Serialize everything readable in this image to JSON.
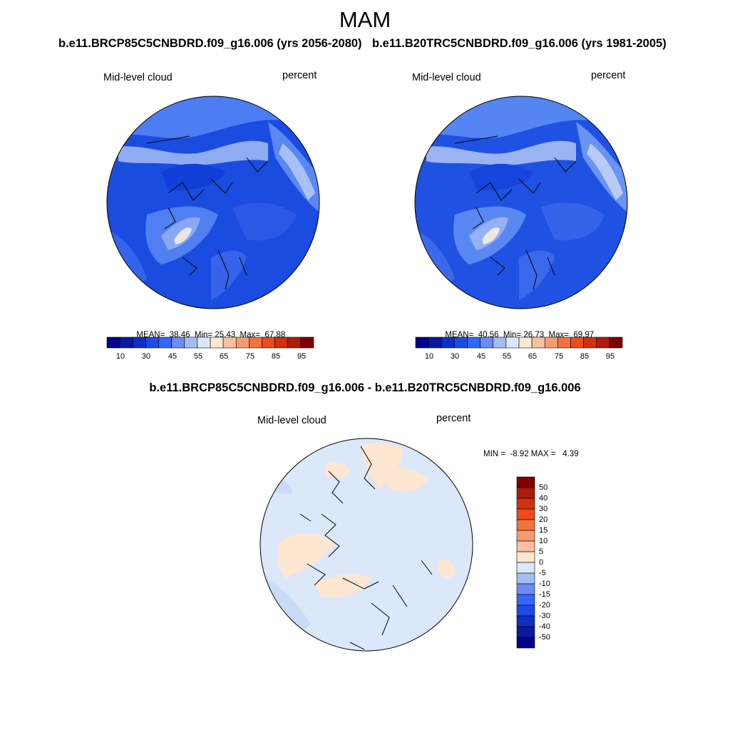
{
  "title": "MAM",
  "panels": [
    {
      "run_label": "b.e11.BRCP85C5CNBDRD.f09_g16.006 (yrs 2056-2080)",
      "variable": "Mid-level cloud",
      "units": "percent",
      "stats": {
        "mean_label": "MEAN=",
        "mean": "38.46",
        "min_label": "Min=",
        "min": "25.43",
        "max_label": "Max=",
        "max": "67.88"
      }
    },
    {
      "run_label": "b.e11.B20TRC5CNBDRD.f09_g16.006 (yrs 1981-2005)",
      "variable": "Mid-level cloud",
      "units": "percent",
      "stats": {
        "mean_label": "MEAN=",
        "mean": "40.56",
        "min_label": "Min=",
        "min": "26.73",
        "max_label": "Max=",
        "max": "69.97"
      }
    }
  ],
  "difference": {
    "title": "b.e11.BRCP85C5CNBDRD.f09_g16.006 - b.e11.B20TRC5CNBDRD.f09_g16.006",
    "variable": "Mid-level cloud",
    "units": "percent",
    "minmax": "MIN =  -8.92 MAX =   4.39"
  },
  "colorbar_abs": {
    "colors": [
      "#00008b",
      "#0a1a9e",
      "#0f2fc2",
      "#1e4be6",
      "#3366ff",
      "#6b8cf5",
      "#a5bcf2",
      "#dbe8fa",
      "#fde6d2",
      "#f7c1a1",
      "#f59b72",
      "#f3733f",
      "#ec4b1c",
      "#d2300e",
      "#ad1b0a",
      "#7f0000"
    ],
    "ticks": [
      "10",
      "30",
      "45",
      "55",
      "65",
      "75",
      "85",
      "95"
    ]
  },
  "colorbar_diff": {
    "colors": [
      "#00008b",
      "#0a1a9e",
      "#0f2fc2",
      "#1e4be6",
      "#3366ff",
      "#6b8cf5",
      "#a5bcf2",
      "#dbe8fa",
      "#fde6d2",
      "#f7c1a1",
      "#f59b72",
      "#f3733f",
      "#ec4b1c",
      "#d2300e",
      "#ad1b0a",
      "#7f0000"
    ],
    "ticks": [
      "50",
      "40",
      "30",
      "20",
      "15",
      "10",
      "5",
      "0",
      "-5",
      "-10",
      "-15",
      "-20",
      "-30",
      "-40",
      "-50"
    ]
  }
}
